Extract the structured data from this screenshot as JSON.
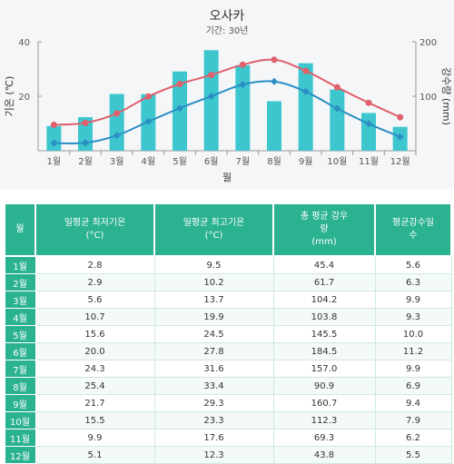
{
  "chart_data": {
    "type": "bar+line",
    "title": "오사카",
    "subtitle": "기간: 30년",
    "xlabel": "월",
    "ylabel_left": "기온 (℃)",
    "ylabel_right": "강수량 (mm)",
    "categories": [
      "1월",
      "2월",
      "3월",
      "4월",
      "5월",
      "6월",
      "7월",
      "8월",
      "9월",
      "10월",
      "11월",
      "12월"
    ],
    "left_ticks": [
      "40",
      "20"
    ],
    "right_ticks": [
      "200",
      "100"
    ],
    "ylim_left": [
      0,
      40
    ],
    "ylim_right": [
      0,
      200
    ],
    "grid": false,
    "series": [
      {
        "kind": "bar",
        "axis": "right",
        "color": "#3ec6cf",
        "values": [
          45.4,
          61.7,
          104.2,
          103.8,
          145.5,
          184.5,
          157.0,
          90.9,
          160.7,
          112.3,
          69.3,
          43.8
        ]
      },
      {
        "kind": "line",
        "axis": "left",
        "color": "#e0606b",
        "values": [
          9.5,
          10.2,
          13.7,
          19.9,
          24.5,
          27.8,
          31.6,
          33.4,
          29.3,
          23.3,
          17.6,
          12.3
        ]
      },
      {
        "kind": "line",
        "axis": "left",
        "color": "#2a8fc4",
        "values": [
          2.8,
          2.9,
          5.6,
          10.7,
          15.6,
          20.0,
          24.3,
          25.4,
          21.7,
          15.5,
          9.9,
          5.1
        ]
      }
    ]
  },
  "table": {
    "headers": [
      "월",
      "일평균 최저기온\n(°C)",
      "일평균 최고기온\n(°C)",
      "총 평균 강우\n량\n(mm)",
      "평균강수일\n수"
    ],
    "rows": [
      [
        "1월",
        "2.8",
        "9.5",
        "45.4",
        "5.6"
      ],
      [
        "2월",
        "2.9",
        "10.2",
        "61.7",
        "6.3"
      ],
      [
        "3월",
        "5.6",
        "13.7",
        "104.2",
        "9.9"
      ],
      [
        "4월",
        "10.7",
        "19.9",
        "103.8",
        "9.3"
      ],
      [
        "5월",
        "15.6",
        "24.5",
        "145.5",
        "10.0"
      ],
      [
        "6월",
        "20.0",
        "27.8",
        "184.5",
        "11.2"
      ],
      [
        "7월",
        "24.3",
        "31.6",
        "157.0",
        "9.9"
      ],
      [
        "8월",
        "25.4",
        "33.4",
        "90.9",
        "6.9"
      ],
      [
        "9월",
        "21.7",
        "29.3",
        "160.7",
        "9.4"
      ],
      [
        "10월",
        "15.5",
        "23.3",
        "112.3",
        "7.9"
      ],
      [
        "11월",
        "9.9",
        "17.6",
        "69.3",
        "6.2"
      ],
      [
        "12월",
        "5.1",
        "12.3",
        "43.8",
        "5.5"
      ]
    ]
  }
}
